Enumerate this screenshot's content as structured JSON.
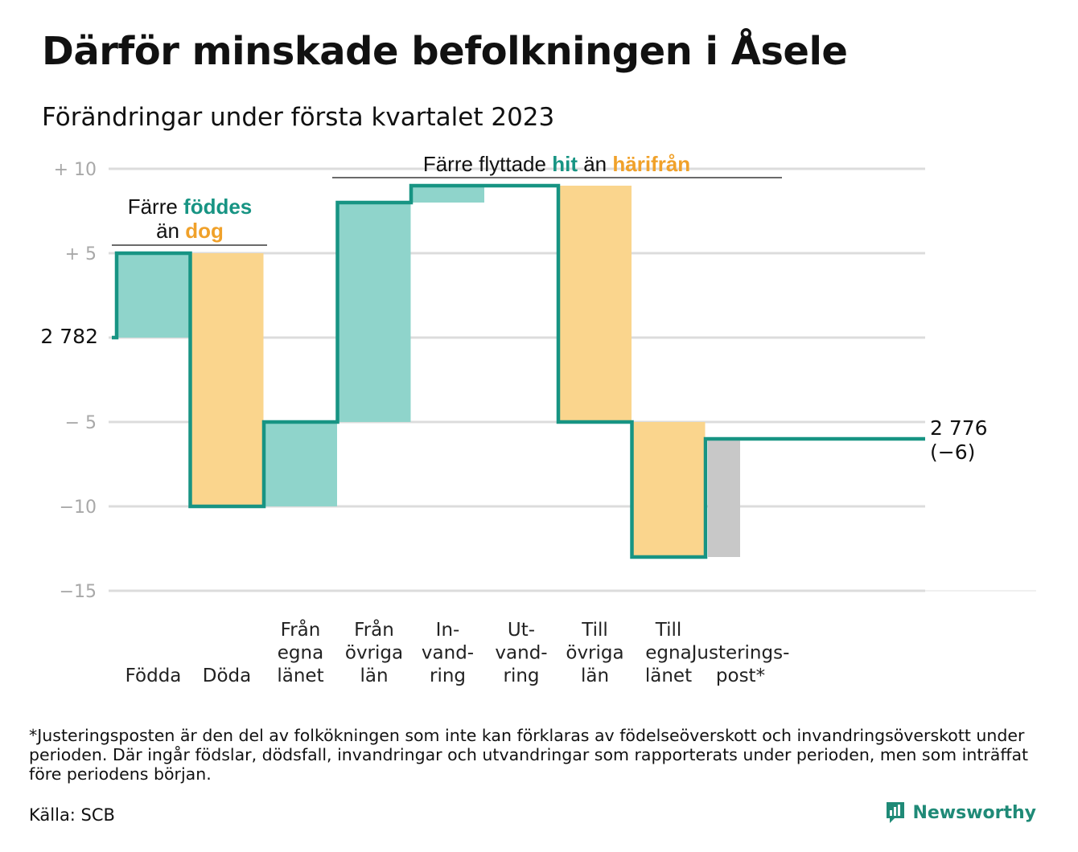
{
  "title": "Därför minskade befolkningen i Åsele",
  "subtitle": "Förändringar under första kvartalet 2023",
  "colors": {
    "teal": "#179483",
    "teal_fill": "#8fd4cb",
    "orange_fill": "#fad58d",
    "orange_text": "#f0a12a",
    "gray_fill": "#c8c8c8",
    "grid": "#dcdcdc"
  },
  "annotations": {
    "births": {
      "line1_a": "Färre ",
      "line1_b": "föddes",
      "line2_a": "än ",
      "line2_b": "dog"
    },
    "migration": {
      "a": "Färre flyttade ",
      "b": "hit",
      "c": " än ",
      "d": "härifrån"
    }
  },
  "chart_data": {
    "type": "waterfall",
    "title": "Därför minskade befolkningen i Åsele",
    "subtitle": "Förändringar under första kvartalet 2023",
    "start_population": 2782,
    "start_label": "2 782",
    "end_population": 2776,
    "end_label": "2 776",
    "end_change_label": "(−6)",
    "ylim": [
      -15,
      10
    ],
    "yticks": [
      {
        "value": 10,
        "label": "+ 10"
      },
      {
        "value": 5,
        "label": "+ 5"
      },
      {
        "value": 0,
        "label": ""
      },
      {
        "value": -5,
        "label": "− 5"
      },
      {
        "value": -10,
        "label": "−10"
      },
      {
        "value": -15,
        "label": "−15"
      }
    ],
    "grid": true,
    "legend": "none",
    "steps": [
      {
        "label": [
          "Födda"
        ],
        "change": 5,
        "color": "teal"
      },
      {
        "label": [
          "Döda"
        ],
        "change": -15,
        "color": "orange"
      },
      {
        "label": [
          "Från",
          "egna",
          "länet"
        ],
        "change": 5,
        "color": "teal"
      },
      {
        "label": [
          "Från",
          "övriga",
          "län"
        ],
        "change": 13,
        "color": "teal"
      },
      {
        "label": [
          "In-",
          "vand-",
          "ring"
        ],
        "change": 1,
        "color": "teal"
      },
      {
        "label": [
          "Ut-",
          "vand-",
          "ring"
        ],
        "change": 0,
        "color": "orange"
      },
      {
        "label": [
          "Till",
          "övriga",
          "län"
        ],
        "change": -14,
        "color": "orange"
      },
      {
        "label": [
          "Till",
          "egna",
          "länet"
        ],
        "change": -8,
        "color": "orange"
      },
      {
        "label": [
          "Justerings-",
          "post*"
        ],
        "change": 7,
        "color": "gray"
      }
    ]
  },
  "footnote": "*Justeringsposten är den del av folkökningen som inte kan förklaras av födelseöverskott och invandringsöverskott under perioden. Där ingår födslar, dödsfall, invandringar och utvandringar som rapporterats under perioden, men som inträffat före periodens början.",
  "source": "Källa: SCB",
  "brand": {
    "name": "Newsworthy",
    "icon": "bar-chart-speech-bubble-icon"
  }
}
